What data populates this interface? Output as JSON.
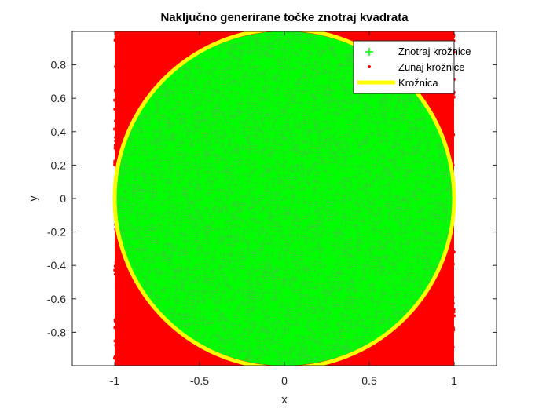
{
  "chart_data": {
    "type": "scatter",
    "title": "Naključno generirane točke znotraj kvadrata",
    "xlabel": "x",
    "ylabel": "y",
    "xlim": [
      -1.25,
      1.25
    ],
    "ylim": [
      -1,
      1
    ],
    "xticks": [
      -1,
      -0.5,
      0,
      0.5,
      1
    ],
    "xtick_labels": [
      "-1",
      "-0.5",
      "0",
      "0.5",
      "1"
    ],
    "yticks": [
      -0.8,
      -0.6,
      -0.4,
      -0.2,
      0,
      0.2,
      0.4,
      0.6,
      0.8
    ],
    "ytick_labels": [
      "-0.8",
      "-0.6",
      "-0.4",
      "-0.2",
      "0",
      "0.2",
      "0.4",
      "0.6",
      "0.8"
    ],
    "grid": false,
    "legend_position": "top-right",
    "sample_region": {
      "x": [
        -1,
        1
      ],
      "y": [
        -1,
        1
      ]
    },
    "circle": {
      "cx": 0,
      "cy": 0,
      "r": 1
    },
    "series": [
      {
        "name": "Znotraj krožnice",
        "marker": "plus",
        "color": "#00ff00",
        "region": "inside circle"
      },
      {
        "name": "Zunaj krožnice",
        "marker": "dot",
        "color": "#ff0000",
        "region": "outside circle"
      },
      {
        "name": "Krožnica",
        "marker": "line",
        "color": "#ffff00",
        "region": "circle boundary"
      }
    ]
  }
}
